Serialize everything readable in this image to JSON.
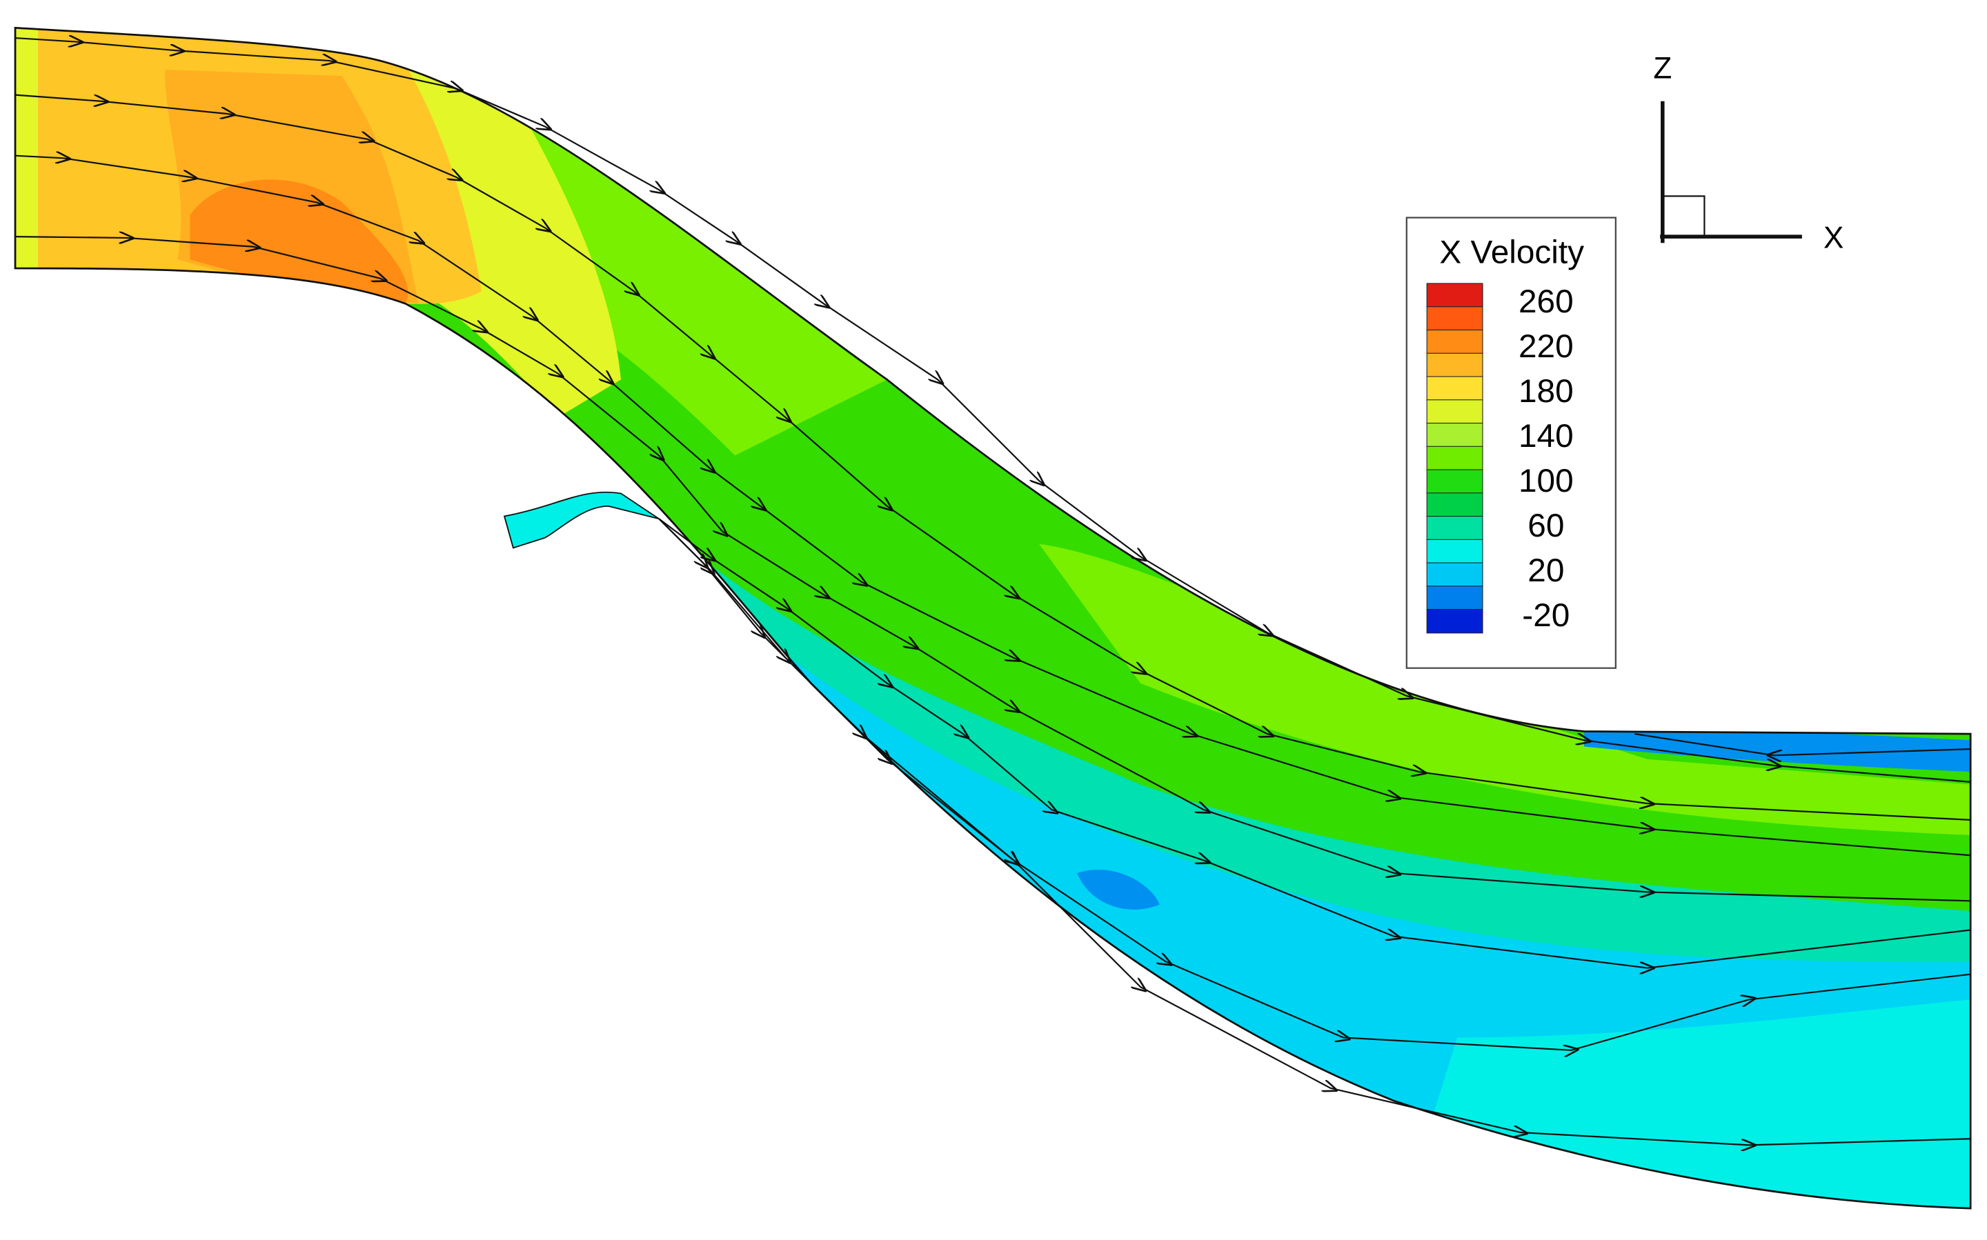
{
  "legend": {
    "title": "X Velocity",
    "ticks": [
      260,
      220,
      180,
      140,
      100,
      60,
      20,
      -20
    ],
    "colors": [
      "#e01c14",
      "#ff5a10",
      "#ff8c14",
      "#ffb824",
      "#ffe030",
      "#dcf428",
      "#a8f030",
      "#70ec00",
      "#20dc10",
      "#00d048",
      "#00e0a0",
      "#00f0e8",
      "#00c8f4",
      "#0080ec",
      "#0020d8"
    ]
  },
  "axes": {
    "z": "Z",
    "x": "X"
  }
}
